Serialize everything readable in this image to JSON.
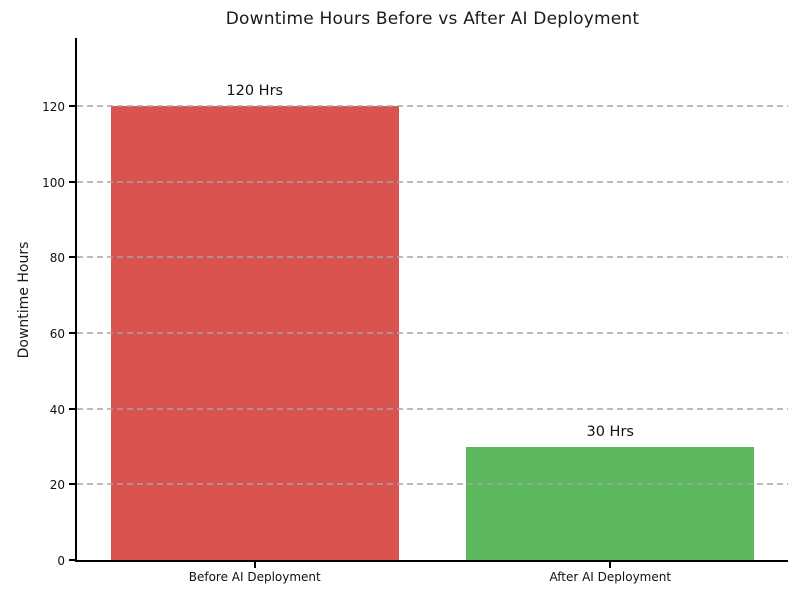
{
  "chart_data": {
    "type": "bar",
    "title": "Downtime Hours Before vs After AI Deployment",
    "categories": [
      "Before AI Deployment",
      "After AI Deployment"
    ],
    "values": [
      120,
      30
    ],
    "value_labels": [
      "120 Hrs",
      "30 Hrs"
    ],
    "bar_colors": [
      "#d9534f",
      "#5cb85c"
    ],
    "xlabel": "",
    "ylabel": "Downtime Hours",
    "yticks": [
      0,
      20,
      40,
      60,
      80,
      100,
      120
    ],
    "ylim": [
      0,
      138
    ],
    "bar_centers_fraction": [
      0.25,
      0.75
    ],
    "bar_width_fraction": 0.405,
    "grid": "horizontal-dashed-over-bars",
    "grid_color": "#a5a5a5",
    "axis_color": "#000000",
    "text_color": "#1a1a1a",
    "background": "#ffffff",
    "legend": "none"
  }
}
